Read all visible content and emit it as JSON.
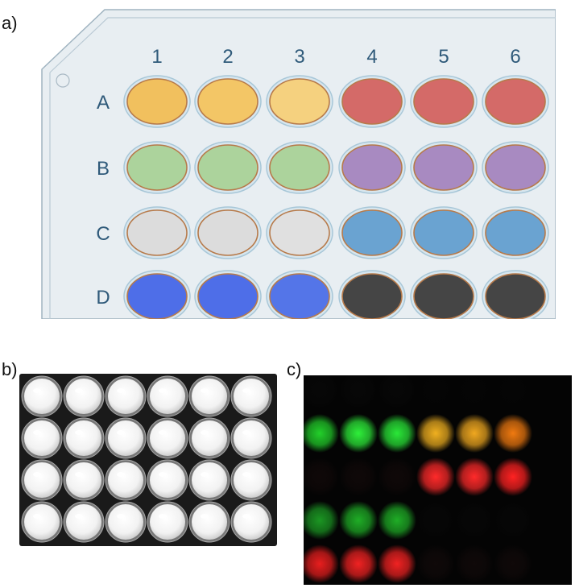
{
  "panels": {
    "a": {
      "label": "a)",
      "columns": [
        "1",
        "2",
        "3",
        "4",
        "5",
        "6"
      ],
      "rows": [
        "A",
        "B",
        "C",
        "D"
      ],
      "well_colors": [
        [
          "#f1c05e",
          "#f3c666",
          "#f5d17f",
          "#d46a68",
          "#d46a68",
          "#d46a68"
        ],
        [
          "#acd39c",
          "#acd39c",
          "#acd39c",
          "#a88ac1",
          "#a88ac1",
          "#a88ac1"
        ],
        [
          "#dcdcdc",
          "#dcdcdc",
          "#e0e0e0",
          "#6aa3d1",
          "#6aa3d1",
          "#6aa3d1"
        ],
        [
          "#4e6ee8",
          "#4e6ee8",
          "#5475e8",
          "#454545",
          "#454545",
          "#454545"
        ]
      ],
      "plate_color": "#e8eef2",
      "label_color": "#2f5a7a"
    },
    "b": {
      "label": "b)",
      "grid": {
        "rows": 4,
        "cols": 6
      },
      "well_color": "#f2f2f2",
      "background": "#1a1a1a"
    },
    "c": {
      "label": "c)",
      "background": "#040404",
      "glow_colors": [
        [
          "#1a1a1a",
          "#1a1a1a",
          "#1a1a1a",
          "#0e0e0e",
          "#0e0e0e",
          "#0e0e0e"
        ],
        [
          "#22d02a",
          "#2ef03a",
          "#2ae838",
          "#f0b020",
          "#f0a820",
          "#f07a10"
        ],
        [
          "#2a1212",
          "#2a1212",
          "#2a1212",
          "#ff2a2a",
          "#ff2a2a",
          "#ff2222"
        ],
        [
          "#1fb028",
          "#22c02a",
          "#22c02a",
          "#141414",
          "#141414",
          "#141414"
        ],
        [
          "#e81e1e",
          "#f02222",
          "#f02222",
          "#2a1414",
          "#2a1414",
          "#2a1414"
        ]
      ],
      "glow_intensity": [
        [
          0.15,
          0.15,
          0.15,
          0.1,
          0.1,
          0.1
        ],
        [
          1,
          1,
          1,
          1,
          1,
          1
        ],
        [
          0.3,
          0.3,
          0.3,
          1,
          1,
          1
        ],
        [
          0.85,
          0.9,
          0.9,
          0.15,
          0.15,
          0.15
        ],
        [
          1,
          1,
          1,
          0.3,
          0.3,
          0.3
        ]
      ]
    }
  }
}
